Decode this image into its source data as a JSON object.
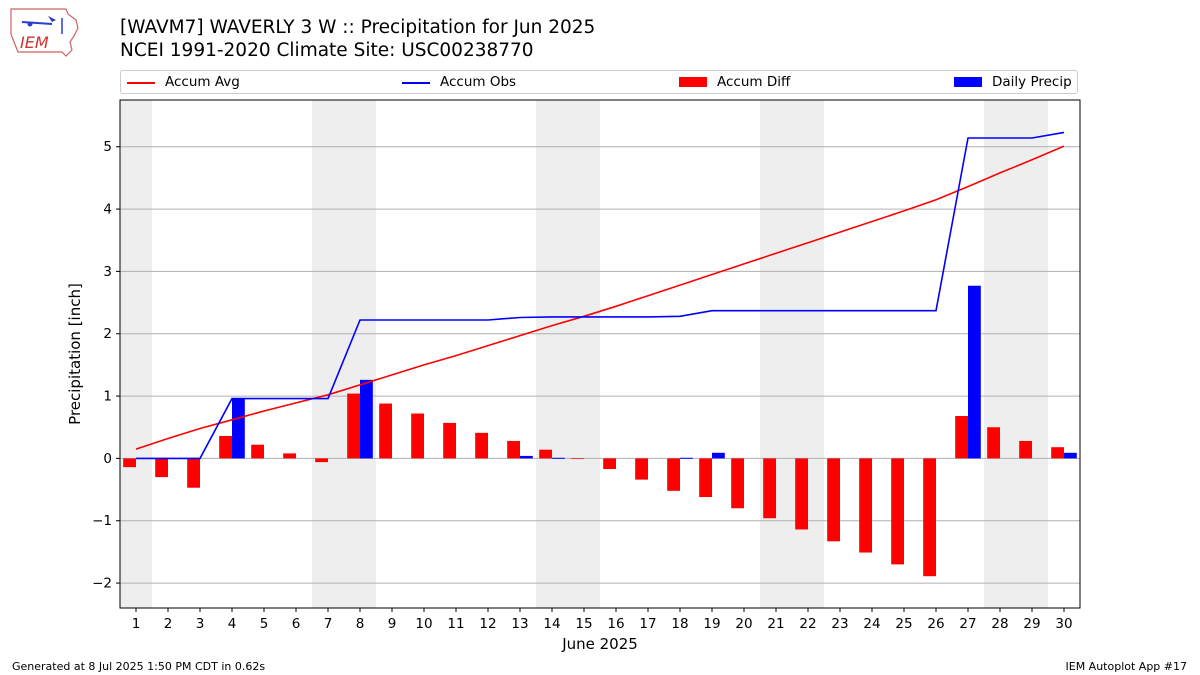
{
  "logo": {
    "text": "IEM"
  },
  "header": {
    "title": "[WAVM7] WAVERLY 3 W :: Precipitation for Jun 2025",
    "subtitle": "NCEI 1991-2020 Climate Site: USC00238770"
  },
  "legend": [
    "Accum Avg",
    "Accum Obs",
    "Accum Diff",
    "Daily Precip"
  ],
  "colors": {
    "avg": "#ff0000",
    "obs": "#0000ff",
    "diff": "#ff0000",
    "precip": "#0000ff",
    "weekend": "#eeeeee",
    "grid": "#b0b0b0"
  },
  "chart_data": {
    "type": "bar",
    "xlabel": "June 2025",
    "ylabel": "Precipitation [inch]",
    "ylim": [
      -2.4,
      5.75
    ],
    "yticks": [
      -2,
      -1,
      0,
      1,
      2,
      3,
      4,
      5
    ],
    "ytick_labels": [
      "−2",
      "−1",
      "0",
      "1",
      "2",
      "3",
      "4",
      "5"
    ],
    "days": [
      1,
      2,
      3,
      4,
      5,
      6,
      7,
      8,
      9,
      10,
      11,
      12,
      13,
      14,
      15,
      16,
      17,
      18,
      19,
      20,
      21,
      22,
      23,
      24,
      25,
      26,
      27,
      28,
      29,
      30
    ],
    "shaded_days": [
      1,
      7,
      8,
      14,
      15,
      21,
      22,
      28,
      29
    ],
    "accum_avg": [
      0.15,
      0.32,
      0.48,
      0.62,
      0.76,
      0.89,
      1.02,
      1.18,
      1.34,
      1.5,
      1.65,
      1.81,
      1.97,
      2.13,
      2.28,
      2.44,
      2.61,
      2.78,
      2.95,
      3.12,
      3.29,
      3.46,
      3.63,
      3.8,
      3.97,
      4.15,
      4.36,
      4.58,
      4.79,
      5.01
    ],
    "accum_obs": [
      0.0,
      0.0,
      0.0,
      0.96,
      0.96,
      0.96,
      0.96,
      2.22,
      2.22,
      2.22,
      2.22,
      2.22,
      2.26,
      2.27,
      2.27,
      2.27,
      2.27,
      2.28,
      2.37,
      2.37,
      2.37,
      2.37,
      2.37,
      2.37,
      2.37,
      2.37,
      5.14,
      5.14,
      5.14,
      5.23
    ],
    "accum_diff": [
      -0.14,
      -0.3,
      -0.47,
      0.36,
      0.22,
      0.08,
      -0.06,
      1.04,
      0.88,
      0.72,
      0.57,
      0.41,
      0.28,
      0.14,
      -0.01,
      -0.17,
      -0.34,
      -0.52,
      -0.62,
      -0.8,
      -0.96,
      -1.14,
      -1.33,
      -1.51,
      -1.7,
      -1.89,
      0.68,
      0.5,
      0.28,
      0.18
    ],
    "daily_precip": [
      0,
      0,
      0,
      0.96,
      0,
      0,
      0,
      1.26,
      0,
      0,
      0,
      0,
      0.04,
      0.01,
      0,
      0,
      0,
      0.01,
      0.09,
      0,
      0,
      0,
      0,
      0,
      0,
      0,
      2.77,
      0,
      0,
      0.09
    ]
  },
  "footer": {
    "left": "Generated at 8 Jul 2025 1:50 PM CDT in 0.62s",
    "right": "IEM Autoplot App #17"
  }
}
